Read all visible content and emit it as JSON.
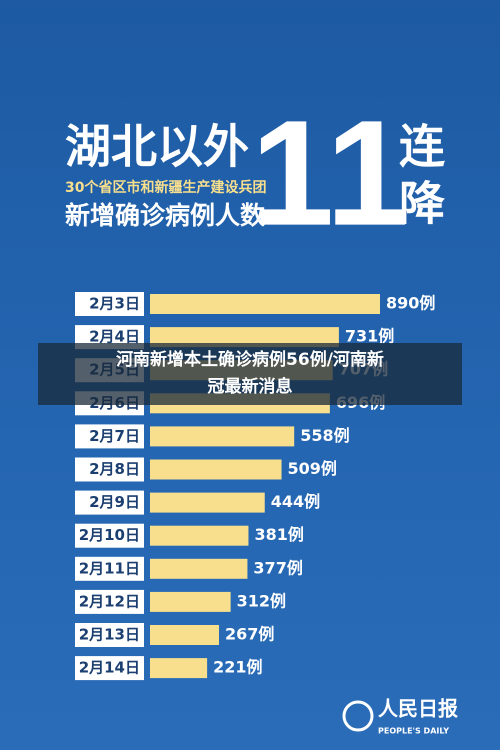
{
  "chart_data": {
    "type": "bar",
    "orientation": "horizontal",
    "title": "湖北以外",
    "subtitle": "30个省区市和新疆生产建设兵团",
    "metric": "新增确诊病例人数",
    "headline": "11",
    "headline_suffix": [
      "连",
      "降"
    ],
    "categories": [
      "2月3日",
      "2月4日",
      "2月5日",
      "2月6日",
      "2月7日",
      "2月8日",
      "2月9日",
      "2月10日",
      "2月11日",
      "2月12日",
      "2月13日",
      "2月14日"
    ],
    "values": [
      890,
      731,
      707,
      696,
      558,
      509,
      444,
      381,
      377,
      312,
      267,
      221
    ],
    "value_labels": [
      "890例",
      "731例",
      "707例",
      "696例",
      "558例",
      "509例",
      "444例",
      "381例",
      "377例",
      "312例",
      "267例",
      "221例"
    ],
    "color": "#f7df8e"
  },
  "overlay": {
    "lines": [
      "河南新增本土确诊病例56例/河南新",
      "冠最新消息"
    ]
  },
  "source": {
    "name": "人民日报",
    "english": "PEOPLE'S DAILY"
  }
}
